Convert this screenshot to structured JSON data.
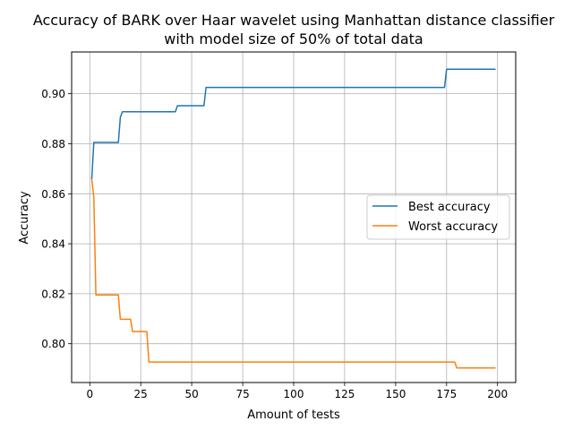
{
  "chart_data": {
    "type": "line",
    "title_line1": "Accuracy of BARK over Haar wavelet using Manhattan distance classifier",
    "title_line2": "with model size of 50% of total data",
    "xlabel": "Amount of tests",
    "ylabel": "Accuracy",
    "xlim": [
      -8.9,
      208.9
    ],
    "ylim": [
      0.7845,
      0.9167
    ],
    "x_ticks": [
      0,
      25,
      50,
      75,
      100,
      125,
      150,
      175,
      200
    ],
    "x_tick_labels": [
      "0",
      "25",
      "50",
      "75",
      "100",
      "125",
      "150",
      "175",
      "200"
    ],
    "y_ticks": [
      0.8,
      0.82,
      0.84,
      0.86,
      0.88,
      0.9
    ],
    "y_tick_labels": [
      "0.80",
      "0.82",
      "0.84",
      "0.86",
      "0.88",
      "0.90"
    ],
    "grid": true,
    "legend_position": "center-right",
    "series": [
      {
        "name": "Best accuracy",
        "color": "#1f77b4",
        "points": [
          [
            1,
            0.8658
          ],
          [
            2,
            0.8805
          ],
          [
            14,
            0.8805
          ],
          [
            15,
            0.8905
          ],
          [
            16,
            0.8928
          ],
          [
            42,
            0.8928
          ],
          [
            43,
            0.8952
          ],
          [
            56,
            0.8952
          ],
          [
            57,
            0.9025
          ],
          [
            174,
            0.9025
          ],
          [
            175,
            0.9098
          ],
          [
            199,
            0.9098
          ]
        ]
      },
      {
        "name": "Worst accuracy",
        "color": "#ff7f0e",
        "points": [
          [
            1,
            0.8658
          ],
          [
            2,
            0.8585
          ],
          [
            3,
            0.8195
          ],
          [
            14,
            0.8195
          ],
          [
            15,
            0.8098
          ],
          [
            20,
            0.8098
          ],
          [
            21,
            0.8049
          ],
          [
            28,
            0.8049
          ],
          [
            29,
            0.7927
          ],
          [
            179,
            0.7927
          ],
          [
            180,
            0.7903
          ],
          [
            199,
            0.7903
          ]
        ]
      }
    ]
  }
}
